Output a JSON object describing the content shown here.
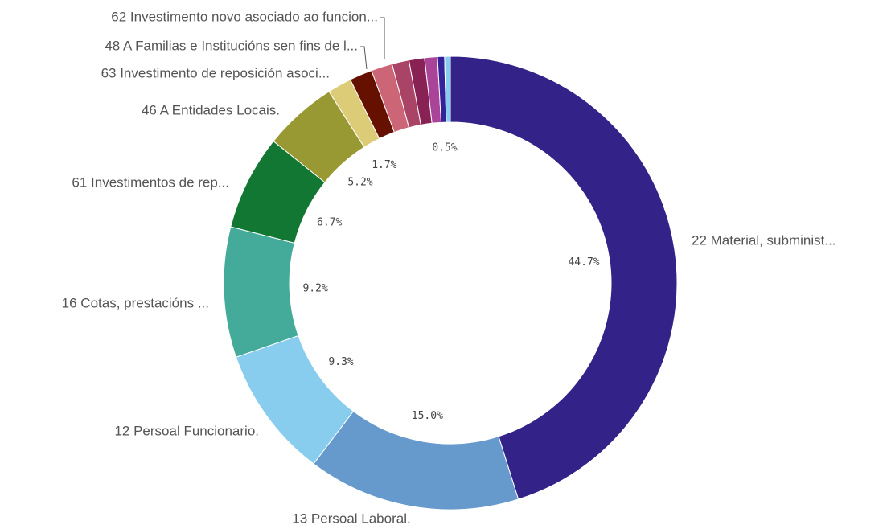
{
  "chart_data": {
    "type": "donut",
    "categories": [
      "22 Material, subminist...",
      "13 Persoal Laboral.",
      "12 Persoal Funcionario.",
      "16 Cotas, prestacións ...",
      "61 Investimentos de rep...",
      "46 A Entidades Locais.",
      "63 Investimento de reposición asoci...",
      "48 A Familias e Institucións sen fins de l...",
      "62 Investimento novo asociado ao funcion...",
      null,
      null,
      null,
      null,
      null
    ],
    "values": [
      44.7,
      15.0,
      9.3,
      9.2,
      6.7,
      5.2,
      1.7,
      1.6,
      1.5,
      1.2,
      1.1,
      0.9,
      0.5,
      0.4
    ],
    "value_labels": [
      "44.7%",
      "15.0%",
      "9.3%",
      "9.2%",
      "6.7%",
      "5.2%",
      "1.7%",
      null,
      null,
      null,
      null,
      null,
      "0.5%",
      null
    ],
    "colors": [
      "#332288",
      "#6699cc",
      "#88ccee",
      "#44aa99",
      "#117733",
      "#999933",
      "#ddcc77",
      "#661100",
      "#cc6677",
      "#aa4466",
      "#882255",
      "#aa4499",
      "#332299",
      "#88ccee"
    ]
  }
}
